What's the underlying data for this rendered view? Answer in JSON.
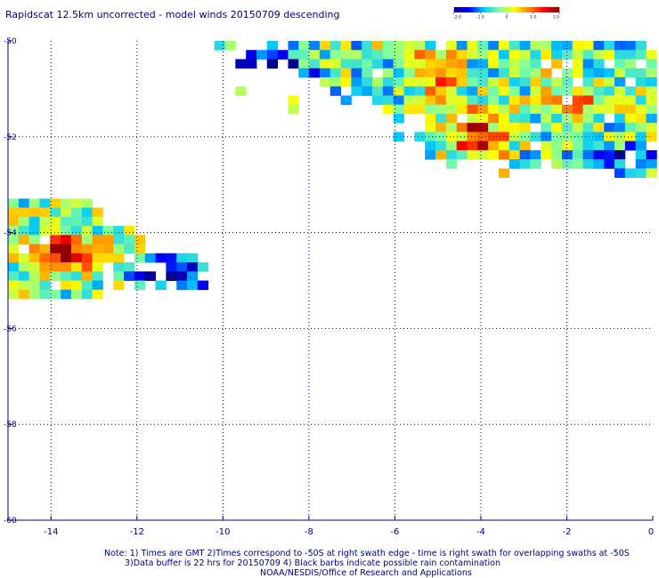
{
  "title": "Rapidscat 12.5km uncorrected - model winds 20150709 descending",
  "colorbar": {
    "tick_labels": [
      "-2.0",
      "-1.0",
      "0",
      "1.0",
      "2.0"
    ],
    "tick_values": [
      -2,
      -1,
      0,
      1,
      2
    ],
    "range": [
      -2,
      2
    ],
    "colors": [
      "#00008c",
      "#0000ff",
      "#00c8ff",
      "#80ffa0",
      "#ffff00",
      "#ff8000",
      "#ff0000",
      "#8c0000"
    ]
  },
  "chart_data": {
    "type": "heatmap",
    "title": "Rapidscat 12.5km uncorrected - model winds 20150709 descending",
    "xlabel": "",
    "ylabel": "",
    "xlim": [
      -15,
      0
    ],
    "ylim": [
      -60,
      -50
    ],
    "x_ticks": [
      -14,
      -12,
      -10,
      -8,
      -6,
      -4,
      -2,
      0
    ],
    "x_tick_labels": [
      "-14",
      "-12",
      "-10",
      "-8",
      "-6",
      "-4",
      "-2",
      "0"
    ],
    "y_ticks": [
      -50,
      -52,
      -54,
      -56,
      -58,
      -60
    ],
    "y_tick_labels": [
      "-50",
      "-52",
      "-54",
      "-56",
      "-58",
      "-60"
    ],
    "grid": true,
    "value_range": [
      -2,
      2
    ],
    "regions": [
      {
        "name": "",
        "lon_range": [
          -10.2,
          0
        ],
        "lat_range": [
          -52.9,
          -50.0
        ],
        "values": "mixed -2.0 to 2.0, peak near 2.0 around lon -4.1 lat -52.1"
      },
      {
        "name": "",
        "lon_range": [
          -15,
          -10.5
        ],
        "lat_range": [
          -55.2,
          -53.1
        ],
        "values": "mixed -2.0 to 2.0, peak near 2.0 around lon -13.8 lat -54.4"
      }
    ]
  },
  "notes": {
    "line1": "Note: 1) Times are GMT 2)Times correspond to -50S at right swath edge - time is right swath for overlapping swaths at -50S",
    "line2": "3)Data buffer is 22 hrs for 20150709 4) Black barbs indicate possible rain contamination",
    "line3": "NOAA/NESDIS/Office of Research and Applications"
  }
}
